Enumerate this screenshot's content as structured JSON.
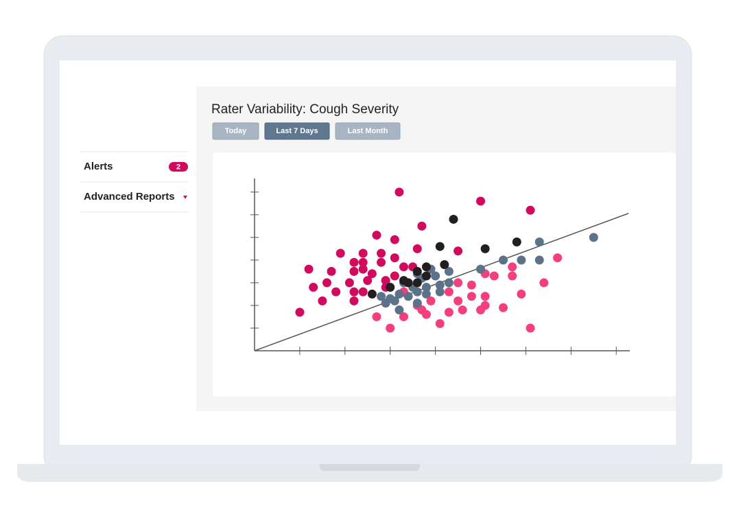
{
  "sidebar": {
    "items": [
      {
        "label": "Alerts",
        "badge": "2"
      },
      {
        "label": "Advanced Reports"
      }
    ]
  },
  "panel": {
    "title": "Rater Variability: Cough Severity",
    "filters": [
      "Today",
      "Last 7 Days",
      "Last Month"
    ],
    "active_filter": 1
  },
  "chart_data": {
    "type": "scatter",
    "xlim": [
      0,
      8.3
    ],
    "ylim": [
      0,
      7.6
    ],
    "xticks": [
      1,
      2,
      3,
      4,
      5,
      6,
      7,
      8
    ],
    "yticks": [
      1,
      2,
      3,
      4,
      5,
      6,
      7
    ],
    "reference_line": {
      "x": [
        0,
        8.27
      ],
      "y": [
        0,
        6.06
      ]
    },
    "series": [
      {
        "color": "#d10a5e",
        "x": [
          3.2,
          5.0,
          6.1,
          3.7,
          2.7,
          3.1,
          4.5,
          1.9,
          2.4,
          2.8,
          3.6,
          2.2,
          2.4,
          2.8,
          3.1,
          3.3,
          3.5,
          1.2,
          1.7,
          2.2,
          2.4,
          2.6,
          3.1,
          1.6,
          2.1,
          2.5,
          2.9,
          1.3,
          1.8,
          2.2,
          2.4,
          2.9,
          1.5,
          2.2,
          1.0
        ],
        "values": [
          7.0,
          6.6,
          6.2,
          5.5,
          5.1,
          4.9,
          4.4,
          4.3,
          4.3,
          4.3,
          4.5,
          3.9,
          3.9,
          3.9,
          4.1,
          3.7,
          3.7,
          3.6,
          3.5,
          3.5,
          3.6,
          3.4,
          3.3,
          3.0,
          3.0,
          3.1,
          3.1,
          2.8,
          2.6,
          2.6,
          2.6,
          2.8,
          2.2,
          2.2,
          1.7
        ]
      },
      {
        "color": "#f43f7f",
        "x": [
          6.7,
          5.7,
          5.1,
          5.3,
          5.7,
          6.4,
          4.5,
          4.8,
          4.3,
          5.9,
          3.3,
          3.9,
          4.5,
          4.8,
          5.1,
          3.7,
          4.3,
          4.6,
          5.0,
          5.1,
          5.5,
          2.7,
          3.3,
          3.8,
          3.0,
          4.1,
          6.1,
          3.6
        ],
        "values": [
          4.1,
          3.7,
          3.4,
          3.3,
          3.3,
          3.0,
          3.0,
          2.9,
          2.6,
          2.5,
          2.6,
          2.2,
          2.2,
          2.4,
          2.4,
          1.8,
          1.7,
          1.8,
          1.8,
          2.0,
          1.9,
          1.5,
          1.5,
          1.6,
          1.0,
          1.2,
          1.0,
          2.0
        ]
      },
      {
        "color": "#5b7289",
        "x": [
          7.5,
          6.3,
          5.5,
          5.9,
          6.3,
          5.0,
          3.6,
          3.9,
          4.3,
          4.0,
          3.3,
          3.7,
          4.3,
          4.1,
          3.5,
          3.8,
          3.6,
          3.2,
          3.4,
          2.8,
          3.0,
          3.8,
          4.1,
          2.9,
          3.1,
          3.6,
          3.2
        ],
        "values": [
          5.0,
          4.8,
          4.0,
          4.0,
          4.0,
          3.6,
          3.4,
          3.6,
          3.5,
          3.3,
          3.0,
          3.2,
          3.0,
          2.9,
          2.8,
          2.8,
          2.6,
          2.5,
          2.4,
          2.4,
          2.3,
          2.5,
          2.6,
          2.1,
          2.2,
          2.1,
          1.8
        ]
      },
      {
        "color": "#231f20",
        "x": [
          4.4,
          5.8,
          4.1,
          5.1,
          3.8,
          4.2,
          3.6,
          3.3,
          3.4,
          3.6,
          3.8,
          3.0,
          2.6
        ],
        "values": [
          5.8,
          4.8,
          4.6,
          4.5,
          3.7,
          3.8,
          3.5,
          3.1,
          3.0,
          3.0,
          3.3,
          2.8,
          2.5
        ]
      }
    ]
  }
}
